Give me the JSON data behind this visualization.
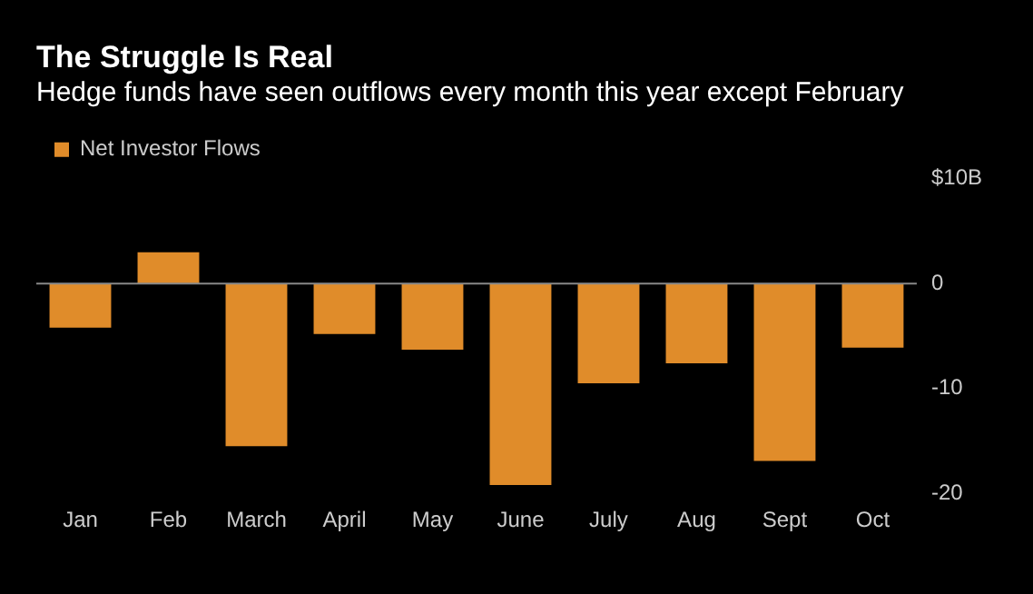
{
  "chart_data": {
    "type": "bar",
    "title": "The Struggle Is Real",
    "subtitle": "Hedge funds have seen outflows every month this year except February",
    "categories": [
      "Jan",
      "Feb",
      "March",
      "April",
      "May",
      "June",
      "July",
      "Aug",
      "Sept",
      "Oct"
    ],
    "series": [
      {
        "name": "Net Investor Flows",
        "color": "#e08c2a",
        "values": [
          -4.2,
          3.0,
          -15.5,
          -4.8,
          -6.3,
          -19.2,
          -9.5,
          -7.6,
          -16.9,
          -6.1
        ]
      }
    ],
    "ylim": [
      -20,
      10
    ],
    "yticks": [
      {
        "value": 10,
        "label": "$10B"
      },
      0,
      -10,
      -20
    ],
    "grid": false,
    "ref_lines": [
      {
        "axis": "y",
        "value": 0,
        "color": "#888888"
      }
    ],
    "legend": "top left"
  }
}
